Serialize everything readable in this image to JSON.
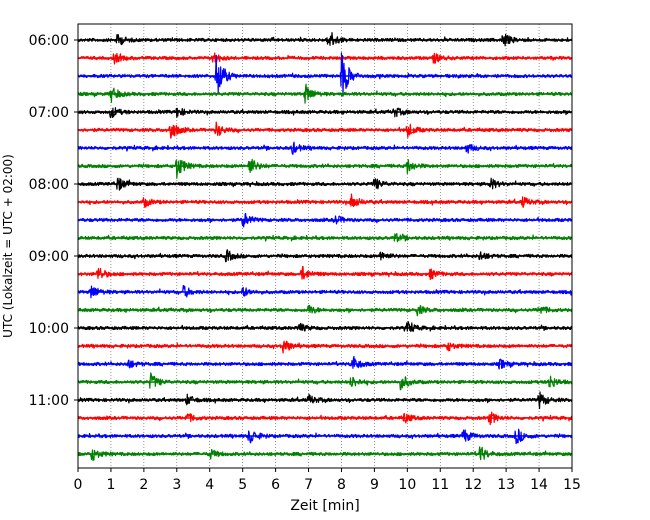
{
  "chart_data": {
    "type": "line",
    "title": "",
    "xlabel": "Zeit  [min]",
    "ylabel": "UTC (Lokalzeit = UTC + 02:00)",
    "xlim": [
      0,
      15
    ],
    "x_ticks": [
      "0",
      "1",
      "2",
      "3",
      "4",
      "5",
      "6",
      "7",
      "8",
      "9",
      "10",
      "11",
      "12",
      "13",
      "14",
      "15"
    ],
    "y_ticks": [
      "06:00",
      "07:00",
      "08:00",
      "09:00",
      "10:00",
      "11:00"
    ],
    "grid": "vertical dotted",
    "trace_interval_minutes": 15,
    "start_time": "06:00",
    "colors": [
      "#000000",
      "#ff0000",
      "#0000ff",
      "#008000"
    ],
    "traces": [
      {
        "start": "06:00",
        "color": "#000000",
        "events": [
          {
            "t": 1.2,
            "amp": 0.25
          },
          {
            "t": 7.6,
            "amp": 0.45
          },
          {
            "t": 12.9,
            "amp": 0.3
          }
        ]
      },
      {
        "start": "06:15",
        "color": "#ff0000",
        "events": [
          {
            "t": 1.1,
            "amp": 0.2
          },
          {
            "t": 4.1,
            "amp": 0.25
          },
          {
            "t": 10.8,
            "amp": 0.2
          }
        ]
      },
      {
        "start": "06:30",
        "color": "#0000ff",
        "events": [
          {
            "t": 4.2,
            "amp": 1.0
          },
          {
            "t": 8.0,
            "amp": 1.0
          }
        ]
      },
      {
        "start": "06:45",
        "color": "#008000",
        "events": [
          {
            "t": 1.0,
            "amp": 0.3
          },
          {
            "t": 6.9,
            "amp": 0.4
          }
        ]
      },
      {
        "start": "07:00",
        "color": "#000000",
        "events": [
          {
            "t": 1.0,
            "amp": 0.25
          },
          {
            "t": 3.0,
            "amp": 0.2
          },
          {
            "t": 9.6,
            "amp": 0.2
          }
        ]
      },
      {
        "start": "07:15",
        "color": "#ff0000",
        "events": [
          {
            "t": 2.8,
            "amp": 0.45
          },
          {
            "t": 4.2,
            "amp": 0.3
          },
          {
            "t": 10.0,
            "amp": 0.3
          }
        ]
      },
      {
        "start": "07:30",
        "color": "#0000ff",
        "events": [
          {
            "t": 6.5,
            "amp": 0.25
          },
          {
            "t": 11.8,
            "amp": 0.2
          }
        ]
      },
      {
        "start": "07:45",
        "color": "#008000",
        "events": [
          {
            "t": 3.0,
            "amp": 0.5
          },
          {
            "t": 5.2,
            "amp": 0.4
          },
          {
            "t": 10.0,
            "amp": 0.3
          }
        ]
      },
      {
        "start": "08:00",
        "color": "#000000",
        "events": [
          {
            "t": 1.2,
            "amp": 0.3
          },
          {
            "t": 9.0,
            "amp": 0.25
          },
          {
            "t": 12.5,
            "amp": 0.25
          }
        ]
      },
      {
        "start": "08:15",
        "color": "#ff0000",
        "events": [
          {
            "t": 2.0,
            "amp": 0.2
          },
          {
            "t": 8.3,
            "amp": 0.3
          },
          {
            "t": 13.5,
            "amp": 0.2
          }
        ]
      },
      {
        "start": "08:30",
        "color": "#0000ff",
        "events": [
          {
            "t": 5.0,
            "amp": 0.35
          },
          {
            "t": 7.8,
            "amp": 0.2
          }
        ]
      },
      {
        "start": "08:45",
        "color": "#008000",
        "events": [
          {
            "t": 9.6,
            "amp": 0.2
          }
        ]
      },
      {
        "start": "09:00",
        "color": "#000000",
        "events": [
          {
            "t": 4.5,
            "amp": 0.25
          },
          {
            "t": 9.2,
            "amp": 0.2
          },
          {
            "t": 12.2,
            "amp": 0.2
          }
        ]
      },
      {
        "start": "09:15",
        "color": "#ff0000",
        "events": [
          {
            "t": 0.6,
            "amp": 0.3
          },
          {
            "t": 6.8,
            "amp": 0.3
          },
          {
            "t": 10.7,
            "amp": 0.2
          }
        ]
      },
      {
        "start": "09:30",
        "color": "#0000ff",
        "events": [
          {
            "t": 0.4,
            "amp": 0.3
          },
          {
            "t": 3.2,
            "amp": 0.25
          },
          {
            "t": 5.0,
            "amp": 0.2
          }
        ]
      },
      {
        "start": "09:45",
        "color": "#008000",
        "events": [
          {
            "t": 7.0,
            "amp": 0.2
          },
          {
            "t": 10.3,
            "amp": 0.2
          },
          {
            "t": 14.0,
            "amp": 0.2
          }
        ]
      },
      {
        "start": "10:00",
        "color": "#000000",
        "events": [
          {
            "t": 6.7,
            "amp": 0.2
          },
          {
            "t": 10.0,
            "amp": 0.25
          }
        ]
      },
      {
        "start": "10:15",
        "color": "#ff0000",
        "events": [
          {
            "t": 6.2,
            "amp": 0.35
          },
          {
            "t": 11.2,
            "amp": 0.2
          }
        ]
      },
      {
        "start": "10:30",
        "color": "#0000ff",
        "events": [
          {
            "t": 1.5,
            "amp": 0.2
          },
          {
            "t": 8.3,
            "amp": 0.4
          },
          {
            "t": 12.8,
            "amp": 0.2
          }
        ]
      },
      {
        "start": "10:45",
        "color": "#008000",
        "events": [
          {
            "t": 2.2,
            "amp": 0.35
          },
          {
            "t": 8.3,
            "amp": 0.25
          },
          {
            "t": 9.8,
            "amp": 0.35
          },
          {
            "t": 14.3,
            "amp": 0.3
          }
        ]
      },
      {
        "start": "11:00",
        "color": "#000000",
        "events": [
          {
            "t": 3.3,
            "amp": 0.2
          },
          {
            "t": 7.0,
            "amp": 0.2
          },
          {
            "t": 14.0,
            "amp": 0.35
          }
        ]
      },
      {
        "start": "11:15",
        "color": "#ff0000",
        "events": [
          {
            "t": 3.3,
            "amp": 0.2
          },
          {
            "t": 9.9,
            "amp": 0.2
          },
          {
            "t": 12.5,
            "amp": 0.25
          }
        ]
      },
      {
        "start": "11:30",
        "color": "#0000ff",
        "events": [
          {
            "t": 5.2,
            "amp": 0.35
          },
          {
            "t": 11.7,
            "amp": 0.3
          },
          {
            "t": 13.3,
            "amp": 0.35
          }
        ]
      },
      {
        "start": "11:45",
        "color": "#008000",
        "events": [
          {
            "t": 0.4,
            "amp": 0.3
          },
          {
            "t": 4.0,
            "amp": 0.2
          },
          {
            "t": 12.2,
            "amp": 0.35
          }
        ]
      }
    ]
  }
}
